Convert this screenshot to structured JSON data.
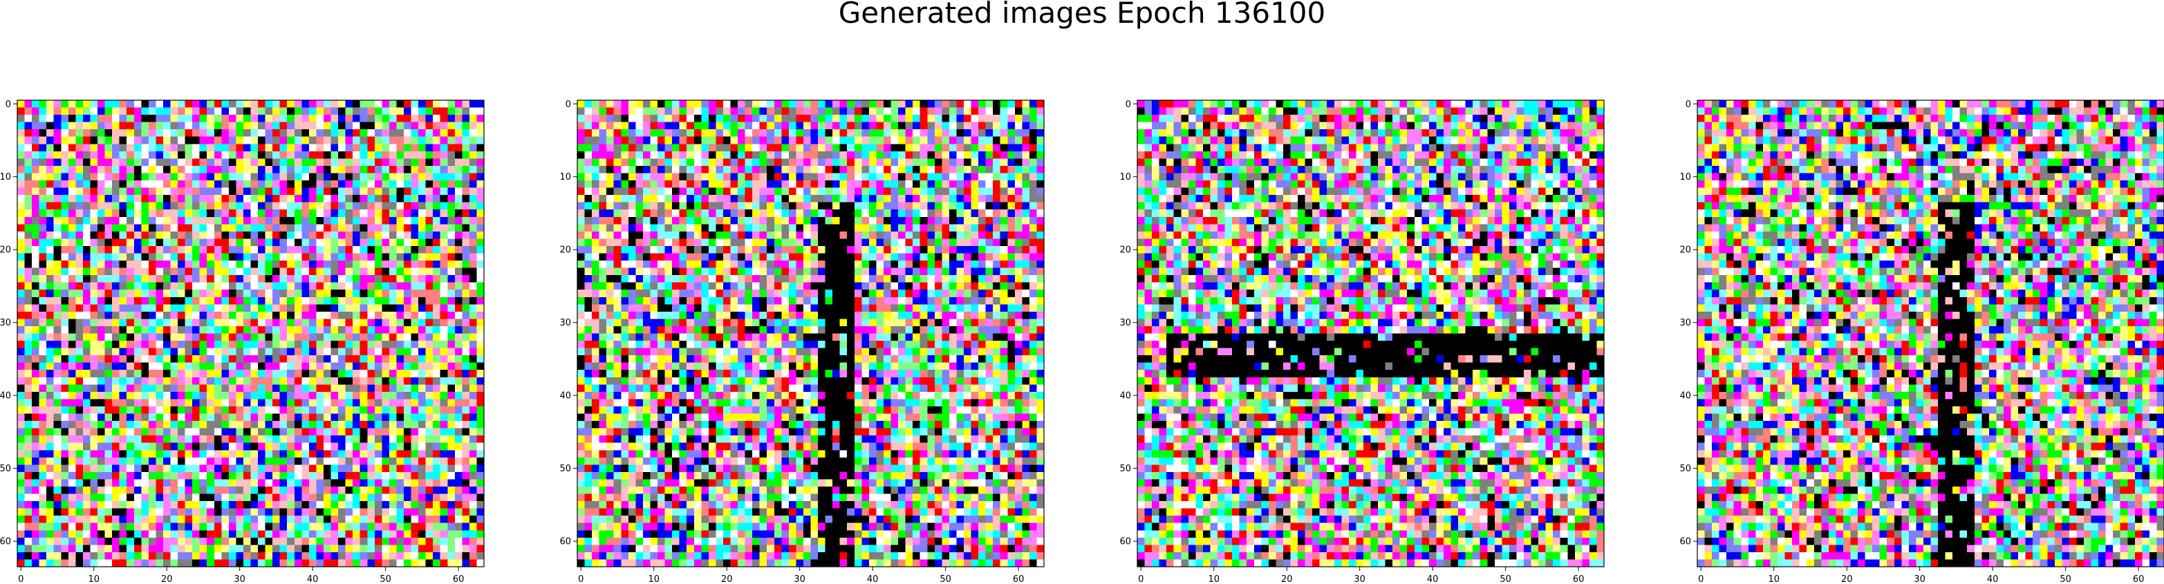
{
  "title": "Generated images Epoch 136100",
  "chart_data": [
    {
      "type": "heatmap",
      "title": "",
      "xlabel": "",
      "ylabel": "",
      "pixel_grid": 64,
      "xlim": [
        -0.5,
        63.5
      ],
      "ylim": [
        63.5,
        -0.5
      ],
      "x_ticks": [
        0,
        10,
        20,
        30,
        40,
        50,
        60
      ],
      "y_ticks": [
        0,
        10,
        20,
        30,
        40,
        50,
        60
      ],
      "grid": false,
      "pattern": "noise",
      "black_regions": [],
      "seed": 11
    },
    {
      "type": "heatmap",
      "title": "",
      "xlabel": "",
      "ylabel": "",
      "pixel_grid": 64,
      "xlim": [
        -0.5,
        63.5
      ],
      "ylim": [
        63.5,
        -0.5
      ],
      "x_ticks": [
        0,
        10,
        20,
        30,
        40,
        50,
        60
      ],
      "y_ticks": [
        0,
        10,
        20,
        30,
        40,
        50,
        60
      ],
      "grid": false,
      "pattern": "vertical-stroke",
      "black_regions": [
        {
          "rows": [
            14,
            63
          ],
          "cols": [
            33,
            37
          ]
        }
      ],
      "seed": 23
    },
    {
      "type": "heatmap",
      "title": "",
      "xlabel": "",
      "ylabel": "",
      "pixel_grid": 64,
      "xlim": [
        -0.5,
        63.5
      ],
      "ylim": [
        63.5,
        -0.5
      ],
      "x_ticks": [
        0,
        10,
        20,
        30,
        40,
        50,
        60
      ],
      "y_ticks": [
        0,
        10,
        20,
        30,
        40,
        50,
        60
      ],
      "grid": false,
      "pattern": "horizontal-stroke",
      "black_regions": [
        {
          "rows": [
            32,
            37
          ],
          "cols": [
            4,
            63
          ]
        }
      ],
      "seed": 37
    },
    {
      "type": "heatmap",
      "title": "",
      "xlabel": "",
      "ylabel": "",
      "pixel_grid": 64,
      "xlim": [
        -0.5,
        63.5
      ],
      "ylim": [
        63.5,
        -0.5
      ],
      "x_ticks": [
        0,
        10,
        20,
        30,
        40,
        50,
        60
      ],
      "y_ticks": [
        0,
        10,
        20,
        30,
        40,
        50,
        60
      ],
      "grid": false,
      "pattern": "vertical-stroke",
      "black_regions": [
        {
          "rows": [
            14,
            63
          ],
          "cols": [
            33,
            37
          ]
        }
      ],
      "seed": 41
    }
  ],
  "palette": [
    "#ff0000",
    "#00ff00",
    "#0000ff",
    "#ffff00",
    "#ff00ff",
    "#00ffff",
    "#ffffff",
    "#000000",
    "#ff8080",
    "#80ff80",
    "#8080ff",
    "#ffff80",
    "#80ffff",
    "#ff80ff",
    "#808080",
    "#ffc0c0"
  ]
}
